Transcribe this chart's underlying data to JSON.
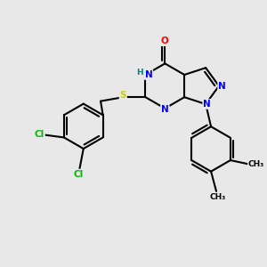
{
  "background_color": "#e8e8e8",
  "bond_color": "#000000",
  "atom_colors": {
    "N": "#0000ff",
    "O": "#ff0000",
    "S": "#cccc00",
    "Cl": "#00bb00",
    "H": "#008080",
    "C": "#000000"
  },
  "figsize": [
    3.0,
    3.0
  ],
  "dpi": 100
}
